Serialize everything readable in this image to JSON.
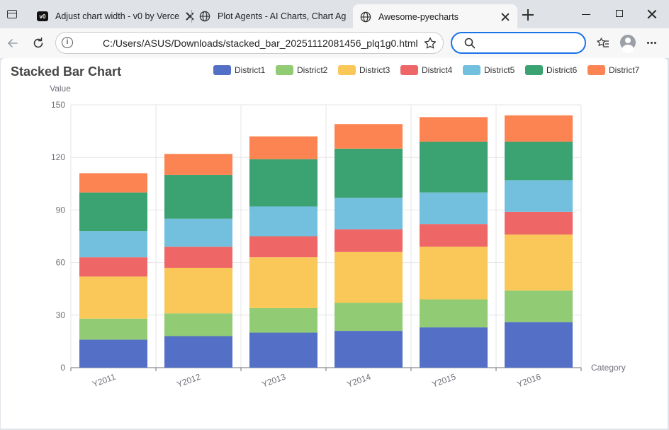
{
  "browser": {
    "tabs": [
      {
        "title": "Adjust chart width - v0 by Verce",
        "icon": "v0-icon",
        "active": false
      },
      {
        "title": "Plot Agents - AI Charts, Chart Ag",
        "icon": "globe-icon",
        "active": false
      },
      {
        "title": "Awesome-pyecharts",
        "icon": "globe-icon",
        "active": true
      }
    ],
    "v0_label": "v0",
    "info_symbol": "i",
    "url": "C:/Users/ASUS/Downloads/stacked_bar_20251112081456_plq1g0.html",
    "search_placeholder": "",
    "accent": "#1a73e8"
  },
  "chart_data": {
    "type": "bar",
    "stacked": true,
    "title": "Stacked Bar Chart",
    "xlabel": "Category",
    "ylabel": "Value",
    "ylim": [
      0,
      150
    ],
    "yticks": [
      0,
      30,
      60,
      90,
      120,
      150
    ],
    "categories": [
      "Y2011",
      "Y2012",
      "Y2013",
      "Y2014",
      "Y2015",
      "Y2016"
    ],
    "legend_position": "top-right",
    "grid": true,
    "series": [
      {
        "name": "District1",
        "color": "#5470c6",
        "values": [
          16,
          18,
          20,
          21,
          23,
          26
        ]
      },
      {
        "name": "District2",
        "color": "#91cc75",
        "values": [
          12,
          13,
          14,
          16,
          16,
          18
        ]
      },
      {
        "name": "District3",
        "color": "#fac858",
        "values": [
          24,
          26,
          29,
          29,
          30,
          32
        ]
      },
      {
        "name": "District4",
        "color": "#ee6666",
        "values": [
          11,
          12,
          12,
          13,
          13,
          13
        ]
      },
      {
        "name": "District5",
        "color": "#73c0de",
        "values": [
          15,
          16,
          17,
          18,
          18,
          18
        ]
      },
      {
        "name": "District6",
        "color": "#3ba272",
        "values": [
          22,
          25,
          27,
          28,
          29,
          22
        ]
      },
      {
        "name": "District7",
        "color": "#fc8452",
        "values": [
          11,
          12,
          13,
          14,
          14,
          15
        ]
      }
    ]
  }
}
